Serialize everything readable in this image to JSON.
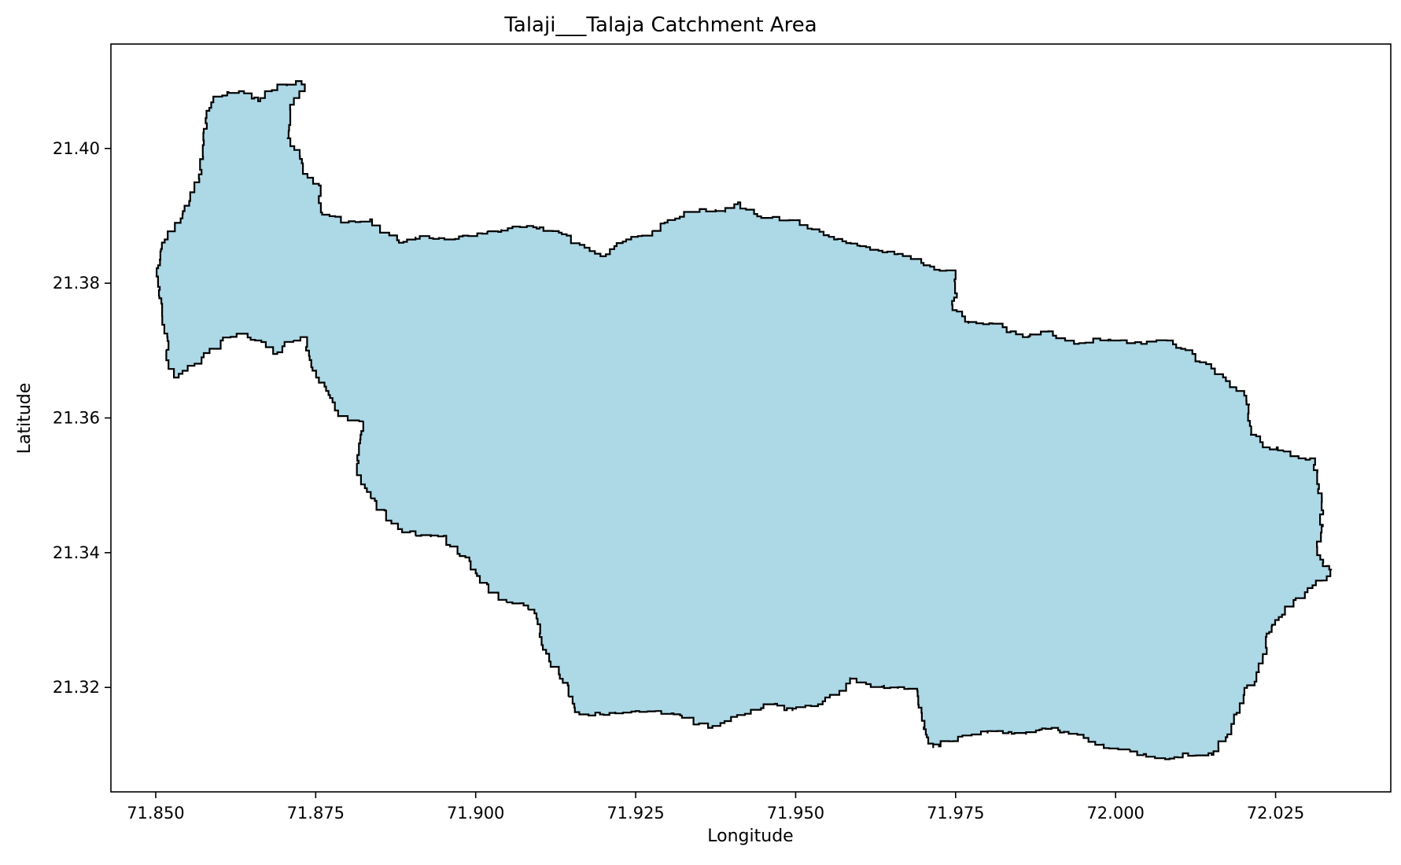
{
  "map": {
    "title": "Talaji___Talaja Catchment Area",
    "xlabel": "Longitude",
    "ylabel": "Latitude",
    "xlim": [
      71.843,
      72.043
    ],
    "ylim": [
      21.3045,
      21.4155
    ],
    "xticks": [
      "71.850",
      "71.875",
      "71.900",
      "71.925",
      "71.950",
      "71.975",
      "72.000",
      "72.025"
    ],
    "yticks": [
      "21.32",
      "21.34",
      "21.36",
      "21.38",
      "21.40"
    ],
    "fill_color": "#add8e6",
    "edge_color": "#000000",
    "catchment_boundary": [
      [
        71.8505,
        21.3835
      ],
      [
        71.8517,
        21.3865
      ],
      [
        71.853,
        21.388
      ],
      [
        71.8545,
        21.3915
      ],
      [
        71.8558,
        21.3935
      ],
      [
        71.8568,
        21.3955
      ],
      [
        71.8575,
        21.4005
      ],
      [
        71.8578,
        21.4045
      ],
      [
        71.859,
        21.4075
      ],
      [
        71.863,
        21.4085
      ],
      [
        71.866,
        21.407
      ],
      [
        71.869,
        21.409
      ],
      [
        71.8728,
        21.41
      ],
      [
        71.8733,
        21.4085
      ],
      [
        71.871,
        21.4065
      ],
      [
        71.8705,
        21.4015
      ],
      [
        71.8725,
        21.3995
      ],
      [
        71.873,
        21.397
      ],
      [
        71.8755,
        21.3945
      ],
      [
        71.876,
        21.3905
      ],
      [
        71.8795,
        21.389
      ],
      [
        71.8835,
        21.3895
      ],
      [
        71.888,
        21.386
      ],
      [
        71.892,
        21.387
      ],
      [
        71.896,
        21.3865
      ],
      [
        71.8995,
        21.387
      ],
      [
        71.904,
        21.388
      ],
      [
        71.908,
        21.3885
      ],
      [
        71.913,
        21.3875
      ],
      [
        71.917,
        21.3855
      ],
      [
        71.9195,
        21.384
      ],
      [
        71.9235,
        21.3865
      ],
      [
        71.926,
        21.387
      ],
      [
        71.93,
        21.389
      ],
      [
        71.935,
        21.391
      ],
      [
        71.939,
        21.3905
      ],
      [
        71.941,
        21.392
      ],
      [
        71.944,
        21.39
      ],
      [
        71.949,
        21.3895
      ],
      [
        71.953,
        21.388
      ],
      [
        71.956,
        21.3865
      ],
      [
        71.961,
        21.3855
      ],
      [
        71.968,
        21.384
      ],
      [
        71.97,
        21.383
      ],
      [
        71.9725,
        21.382
      ],
      [
        71.975,
        21.3815
      ],
      [
        71.9752,
        21.3785
      ],
      [
        71.9745,
        21.376
      ],
      [
        71.977,
        21.374
      ],
      [
        71.9815,
        21.374
      ],
      [
        71.9855,
        21.372
      ],
      [
        71.9895,
        21.373
      ],
      [
        71.9935,
        21.371
      ],
      [
        71.9965,
        21.3715
      ],
      [
        72.0,
        21.3715
      ],
      [
        72.004,
        21.371
      ],
      [
        72.008,
        21.3715
      ],
      [
        72.012,
        21.3695
      ],
      [
        72.016,
        21.3665
      ],
      [
        72.0195,
        21.364
      ],
      [
        72.021,
        21.362
      ],
      [
        72.021,
        21.3575
      ],
      [
        72.023,
        21.356
      ],
      [
        72.0262,
        21.355
      ],
      [
        72.029,
        21.354
      ],
      [
        72.031,
        21.354
      ],
      [
        72.0315,
        21.351
      ],
      [
        72.0322,
        21.347
      ],
      [
        72.0322,
        21.343
      ],
      [
        72.0315,
        21.34
      ],
      [
        72.033,
        21.338
      ],
      [
        72.0338,
        21.3375
      ],
      [
        72.033,
        21.3365
      ],
      [
        72.03,
        21.3345
      ],
      [
        72.027,
        21.332
      ],
      [
        72.0255,
        21.33
      ],
      [
        72.024,
        21.328
      ],
      [
        72.023,
        21.3245
      ],
      [
        72.022,
        21.3215
      ],
      [
        72.02,
        21.3185
      ],
      [
        72.0185,
        21.315
      ],
      [
        72.0168,
        21.312
      ],
      [
        72.015,
        21.31
      ],
      [
        72.0105,
        21.31
      ],
      [
        72.007,
        21.3095
      ],
      [
        72.003,
        21.3105
      ],
      [
        71.999,
        21.311
      ],
      [
        71.995,
        21.3125
      ],
      [
        71.99,
        21.314
      ],
      [
        71.986,
        21.313
      ],
      [
        71.9815,
        21.3135
      ],
      [
        71.9775,
        21.313
      ],
      [
        71.974,
        21.312
      ],
      [
        71.9715,
        21.311
      ],
      [
        71.9705,
        21.313
      ],
      [
        71.9695,
        21.317
      ],
      [
        71.969,
        21.3195
      ],
      [
        71.9655,
        21.32
      ],
      [
        71.961,
        21.3205
      ],
      [
        71.9585,
        21.3215
      ],
      [
        71.9575,
        21.3195
      ],
      [
        71.9535,
        21.3175
      ],
      [
        71.9495,
        21.3165
      ],
      [
        71.946,
        21.3175
      ],
      [
        71.943,
        21.3165
      ],
      [
        71.9395,
        21.315
      ],
      [
        71.937,
        21.314
      ],
      [
        71.933,
        21.3155
      ],
      [
        71.929,
        21.3165
      ],
      [
        71.925,
        21.3165
      ],
      [
        71.92,
        21.316
      ],
      [
        71.917,
        21.316
      ],
      [
        71.9155,
        21.317
      ],
      [
        71.9145,
        21.3195
      ],
      [
        71.913,
        21.3225
      ],
      [
        71.911,
        21.325
      ],
      [
        71.91,
        21.328
      ],
      [
        71.9095,
        21.331
      ],
      [
        71.907,
        21.3325
      ],
      [
        71.904,
        21.333
      ],
      [
        71.902,
        21.3345
      ],
      [
        71.9,
        21.3375
      ],
      [
        71.8975,
        21.3395
      ],
      [
        71.895,
        21.3425
      ],
      [
        71.8915,
        21.3425
      ],
      [
        71.8885,
        21.3435
      ],
      [
        71.886,
        21.3455
      ],
      [
        71.8845,
        21.347
      ],
      [
        71.883,
        21.349
      ],
      [
        71.8818,
        21.3515
      ],
      [
        71.8815,
        21.3545
      ],
      [
        71.882,
        21.3575
      ],
      [
        71.8825,
        21.3595
      ],
      [
        71.88,
        21.36
      ],
      [
        71.878,
        21.3615
      ],
      [
        71.877,
        21.364
      ],
      [
        71.8755,
        21.366
      ],
      [
        71.8745,
        21.3675
      ],
      [
        71.8735,
        21.37
      ],
      [
        71.8735,
        21.372
      ],
      [
        71.8715,
        21.3715
      ],
      [
        71.869,
        21.3695
      ],
      [
        71.8665,
        21.3715
      ],
      [
        71.8635,
        21.3725
      ],
      [
        71.8605,
        21.3715
      ],
      [
        71.8575,
        21.369
      ],
      [
        71.855,
        21.367
      ],
      [
        71.853,
        21.366
      ],
      [
        71.852,
        21.368
      ],
      [
        71.8518,
        21.372
      ],
      [
        71.851,
        21.376
      ],
      [
        71.8505,
        21.379
      ],
      [
        71.85,
        21.381
      ],
      [
        71.8505,
        21.3835
      ]
    ]
  }
}
